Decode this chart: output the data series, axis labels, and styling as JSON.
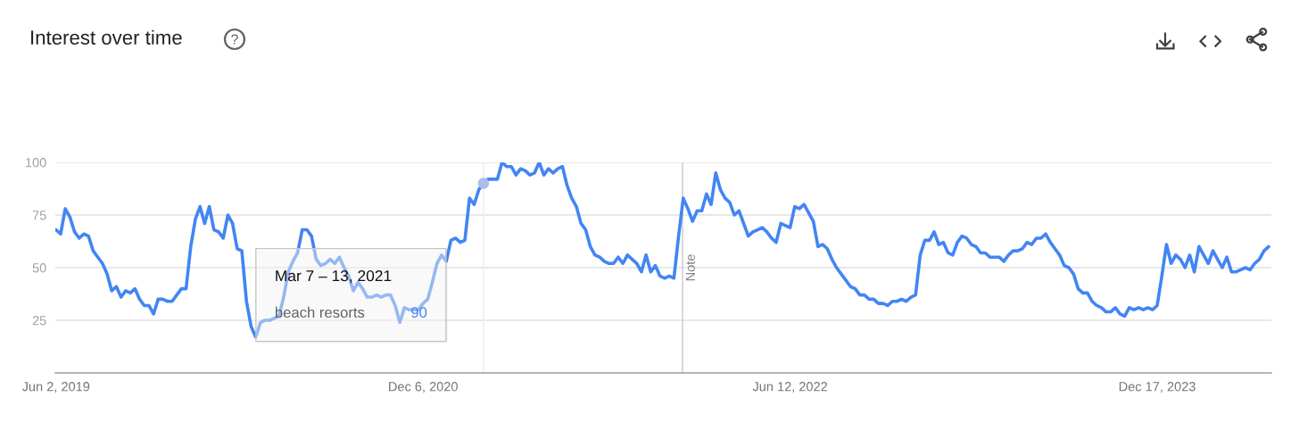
{
  "chart_data": {
    "type": "line",
    "title": "Interest over time",
    "x": [
      "2019-06-02",
      "2019-06-09",
      "2019-06-16",
      "2019-06-23",
      "2019-06-30",
      "2019-07-07",
      "2019-07-14",
      "2019-07-21",
      "2019-07-28",
      "2019-08-04",
      "2019-08-11",
      "2019-08-18",
      "2019-08-25",
      "2019-09-01",
      "2019-09-08",
      "2019-09-15",
      "2019-09-22",
      "2019-09-29",
      "2019-10-06",
      "2019-10-13",
      "2019-10-20",
      "2019-10-27",
      "2019-11-03",
      "2019-11-10",
      "2019-11-17",
      "2019-11-24",
      "2019-12-01",
      "2019-12-08",
      "2019-12-15",
      "2019-12-22",
      "2019-12-29",
      "2020-01-05",
      "2020-01-12",
      "2020-01-19",
      "2020-01-26",
      "2020-02-02",
      "2020-02-09",
      "2020-02-16",
      "2020-02-23",
      "2020-03-01",
      "2020-03-08",
      "2020-03-15",
      "2020-03-22",
      "2020-03-29",
      "2020-04-05",
      "2020-04-12",
      "2020-04-19",
      "2020-04-26",
      "2020-05-03",
      "2020-05-10",
      "2020-05-17",
      "2020-05-24",
      "2020-05-31",
      "2020-06-07",
      "2020-06-14",
      "2020-06-21",
      "2020-06-28",
      "2020-07-05",
      "2020-07-12",
      "2020-07-19",
      "2020-07-26",
      "2020-08-02",
      "2020-08-09",
      "2020-08-16",
      "2020-08-23",
      "2020-08-30",
      "2020-09-06",
      "2020-09-13",
      "2020-09-20",
      "2020-09-27",
      "2020-10-04",
      "2020-10-11",
      "2020-10-18",
      "2020-10-25",
      "2020-11-01",
      "2020-11-08",
      "2020-11-15",
      "2020-11-22",
      "2020-11-29",
      "2020-12-06",
      "2020-12-13",
      "2020-12-20",
      "2020-12-27",
      "2021-01-03",
      "2021-01-10",
      "2021-01-17",
      "2021-01-24",
      "2021-01-31",
      "2021-02-07",
      "2021-02-14",
      "2021-02-21",
      "2021-02-28",
      "2021-03-07",
      "2021-03-14",
      "2021-03-21",
      "2021-03-28",
      "2021-04-04",
      "2021-04-11",
      "2021-04-18",
      "2021-04-25",
      "2021-05-02",
      "2021-05-09",
      "2021-05-16",
      "2021-05-23",
      "2021-05-30",
      "2021-06-06",
      "2021-06-13",
      "2021-06-20",
      "2021-06-27",
      "2021-07-04",
      "2021-07-11",
      "2021-07-18",
      "2021-07-25",
      "2021-08-01",
      "2021-08-08",
      "2021-08-15",
      "2021-08-22",
      "2021-08-29",
      "2021-09-05",
      "2021-09-12",
      "2021-09-19",
      "2021-09-26",
      "2021-10-03",
      "2021-10-10",
      "2021-10-17",
      "2021-10-24",
      "2021-10-31",
      "2021-11-07",
      "2021-11-14",
      "2021-11-21",
      "2021-11-28",
      "2021-12-05",
      "2021-12-12",
      "2021-12-19",
      "2021-12-26",
      "2022-01-02",
      "2022-01-09",
      "2022-01-16",
      "2022-01-23",
      "2022-01-30",
      "2022-02-06",
      "2022-02-13",
      "2022-02-20",
      "2022-02-27",
      "2022-03-06",
      "2022-03-13",
      "2022-03-20",
      "2022-03-27",
      "2022-04-03",
      "2022-04-10",
      "2022-04-17",
      "2022-04-24",
      "2022-05-01",
      "2022-05-08",
      "2022-05-15",
      "2022-05-22",
      "2022-05-29",
      "2022-06-05",
      "2022-06-12",
      "2022-06-19",
      "2022-06-26",
      "2022-07-03",
      "2022-07-10",
      "2022-07-17",
      "2022-07-24",
      "2022-07-31",
      "2022-08-07",
      "2022-08-14",
      "2022-08-21",
      "2022-08-28",
      "2022-09-04",
      "2022-09-11",
      "2022-09-18",
      "2022-09-25",
      "2022-10-02",
      "2022-10-09",
      "2022-10-16",
      "2022-10-23",
      "2022-10-30",
      "2022-11-06",
      "2022-11-13",
      "2022-11-20",
      "2022-11-27",
      "2022-12-04",
      "2022-12-11",
      "2022-12-18",
      "2022-12-25",
      "2023-01-01",
      "2023-01-08",
      "2023-01-15",
      "2023-01-22",
      "2023-01-29",
      "2023-02-05",
      "2023-02-12",
      "2023-02-19",
      "2023-02-26",
      "2023-03-05",
      "2023-03-12",
      "2023-03-19",
      "2023-03-26",
      "2023-04-02",
      "2023-04-09",
      "2023-04-16",
      "2023-04-23",
      "2023-04-30",
      "2023-05-07",
      "2023-05-14",
      "2023-05-21",
      "2023-05-28",
      "2023-06-04",
      "2023-06-11",
      "2023-06-18",
      "2023-06-25",
      "2023-07-02",
      "2023-07-09",
      "2023-07-16",
      "2023-07-23",
      "2023-07-30",
      "2023-08-06",
      "2023-08-13",
      "2023-08-20",
      "2023-08-27",
      "2023-09-03",
      "2023-09-10",
      "2023-09-17",
      "2023-09-24",
      "2023-10-01",
      "2023-10-08",
      "2023-10-15",
      "2023-10-22",
      "2023-10-29",
      "2023-11-05",
      "2023-11-12",
      "2023-11-19",
      "2023-11-26",
      "2023-12-03",
      "2023-12-10",
      "2023-12-17",
      "2023-12-24",
      "2023-12-31",
      "2024-01-07",
      "2024-01-14",
      "2024-01-21",
      "2024-01-28",
      "2024-02-04",
      "2024-02-11",
      "2024-02-18",
      "2024-02-25",
      "2024-03-03",
      "2024-03-10",
      "2024-03-17",
      "2024-03-24",
      "2024-03-31",
      "2024-04-07",
      "2024-04-14",
      "2024-04-21",
      "2024-04-28",
      "2024-05-05",
      "2024-05-12",
      "2024-05-19",
      "2024-05-26",
      "2024-06-02"
    ],
    "series": [
      {
        "name": "beach resorts",
        "color": "#4285f4",
        "values": [
          68,
          66,
          78,
          74,
          67,
          64,
          66,
          65,
          58,
          55,
          52,
          47,
          39,
          41,
          36,
          39,
          38,
          40,
          35,
          32,
          32,
          28,
          35,
          35,
          34,
          34,
          37,
          40,
          40,
          60,
          73,
          79,
          71,
          79,
          68,
          67,
          64,
          75,
          71,
          59,
          58,
          34,
          22,
          17,
          24,
          25,
          25,
          26,
          27,
          36,
          48,
          53,
          57,
          68,
          68,
          65,
          54,
          51,
          52,
          54,
          52,
          55,
          50,
          46,
          39,
          43,
          40,
          36,
          36,
          37,
          36,
          37,
          37,
          32,
          24,
          31,
          30,
          30,
          30,
          33,
          35,
          43,
          52,
          56,
          53,
          63,
          64,
          62,
          63,
          83,
          80,
          87,
          90,
          92,
          92,
          92,
          100,
          98,
          98,
          94,
          97,
          96,
          94,
          95,
          100,
          94,
          97,
          95,
          97,
          98,
          89,
          83,
          79,
          71,
          68,
          60,
          56,
          55,
          53,
          52,
          52,
          55,
          52,
          56,
          54,
          52,
          48,
          56,
          48,
          51,
          46,
          45,
          46,
          45,
          65,
          83,
          78,
          72,
          77,
          77,
          85,
          80,
          95,
          87,
          83,
          81,
          75,
          77,
          71,
          65,
          67,
          68,
          69,
          67,
          64,
          62,
          71,
          70,
          69,
          79,
          78,
          80,
          76,
          72,
          60,
          61,
          59,
          54,
          50,
          47,
          44,
          41,
          40,
          37,
          37,
          35,
          35,
          33,
          33,
          32,
          34,
          34,
          35,
          34,
          36,
          37,
          56,
          63,
          63,
          67,
          61,
          62,
          57,
          56,
          62,
          65,
          64,
          61,
          60,
          57,
          57,
          55,
          55,
          55,
          53,
          56,
          58,
          58,
          59,
          62,
          61,
          64,
          64,
          66,
          62,
          59,
          56,
          51,
          50,
          47,
          40,
          38,
          38,
          34,
          32,
          31,
          29,
          29,
          31,
          28,
          27,
          31,
          30,
          31,
          30,
          31,
          30,
          32,
          46,
          61,
          52,
          56,
          54,
          50,
          56,
          48,
          60,
          56,
          52,
          58,
          54,
          50,
          55,
          48,
          48,
          49,
          50,
          49,
          52,
          54,
          58,
          60
        ]
      },
      {
        "type": "scatter",
        "x": [
          "2021-03-07"
        ],
        "values": [
          90
        ],
        "color": "#a9bfe6",
        "marker": "circle"
      }
    ],
    "xlim": [
      "2019-06-01",
      "2024-06-06"
    ],
    "ylim": [
      0,
      100
    ],
    "xticks": [
      {
        "value": "2019-06-02",
        "label": "Jun 2, 2019"
      },
      {
        "value": "2020-12-06",
        "label": "Dec 6, 2020"
      },
      {
        "value": "2022-06-12",
        "label": "Jun 12, 2022"
      },
      {
        "value": "2023-12-17",
        "label": "Dec 17, 2023"
      }
    ],
    "yticks": [
      25,
      50,
      75,
      100
    ],
    "grid": "y",
    "ref_lines": [
      {
        "axis": "x",
        "value": "2022-01-01",
        "label": "Note",
        "color": "#cccccc"
      },
      {
        "axis": "x",
        "value": "2021-03-07",
        "label": null,
        "color": "#eeeeee"
      }
    ],
    "annotations": [
      "Mar 7 – 13, 2021",
      "90"
    ]
  }
}
